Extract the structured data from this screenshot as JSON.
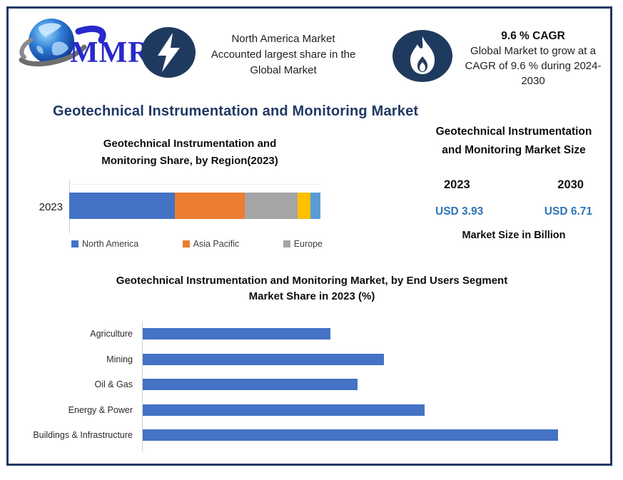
{
  "brand": {
    "logo_text": "MMR"
  },
  "header": {
    "highlight1": {
      "icon": "lightning-icon",
      "text_lines": [
        "North America Market",
        "Accounted largest share in the",
        "Global Market"
      ]
    },
    "highlight2": {
      "icon": "flame-icon",
      "title": "9.6 % CAGR",
      "text": "Global Market to grow at a CAGR of 9.6 % during 2024-2030"
    }
  },
  "page_title": "Geotechnical Instrumentation and Monitoring Market",
  "market_size_panel": {
    "title": "Geotechnical Instrumentation and Monitoring Market Size",
    "years": [
      "2023",
      "2030"
    ],
    "values": [
      "USD 3.93",
      "USD 6.71"
    ],
    "caption": "Market Size in Billion",
    "value_color": "#2E75B6"
  },
  "colors": {
    "border_navy": "#1F3864",
    "icon_navy": "#1F3A5F",
    "title_navy": "#1F3864",
    "bar_blue": "#4472C4"
  },
  "chart_data": [
    {
      "type": "bar",
      "orientation": "horizontal-stacked",
      "title": "Geotechnical Instrumentation and Monitoring Share, by Region(2023)",
      "categories": [
        "2023"
      ],
      "series": [
        {
          "name": "North America",
          "values": [
            42
          ],
          "color": "#4472C4"
        },
        {
          "name": "Asia Pacific",
          "values": [
            28
          ],
          "color": "#ED7D31"
        },
        {
          "name": "Europe",
          "values": [
            21
          ],
          "color": "#A5A5A5"
        },
        {
          "name": "",
          "values": [
            5
          ],
          "color": "#FFC000"
        },
        {
          "name": "",
          "values": [
            4
          ],
          "color": "#5B9BD5"
        }
      ],
      "legend": [
        "North America",
        "Asia Pacific",
        "Europe"
      ],
      "legend_position": "bottom",
      "xlim": [
        0,
        100
      ],
      "grid": false
    },
    {
      "type": "bar",
      "orientation": "horizontal",
      "title": "Geotechnical Instrumentation and Monitoring Market, by End Users Segment Market Share in 2023 (%)",
      "title_lines": [
        "Geotechnical Instrumentation and Monitoring Market, by End Users Segment",
        "Market Share in 2023 (%)"
      ],
      "categories": [
        "Agriculture",
        "Mining",
        "Oil & Gas",
        "Energy & Power",
        "Buildings & Infrastructure"
      ],
      "values": [
        14,
        18,
        16,
        21,
        31
      ],
      "bar_color": "#4472C4",
      "xlim": [
        0,
        33
      ],
      "grid": false,
      "legend_position": "none"
    }
  ]
}
